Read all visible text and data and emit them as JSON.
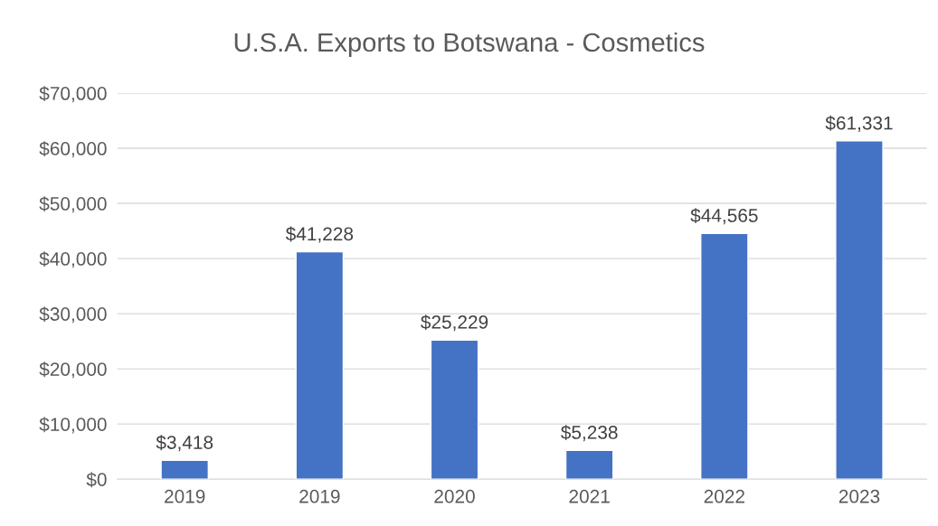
{
  "chart_data": {
    "type": "bar",
    "title": "U.S.A. Exports to Botswana - Cosmetics",
    "categories": [
      "2019",
      "2019",
      "2020",
      "2021",
      "2022",
      "2023"
    ],
    "values": [
      3418,
      41228,
      25229,
      5238,
      44565,
      61331
    ],
    "value_labels": [
      "$3,418",
      "$41,228",
      "$25,229",
      "$5,238",
      "$44,565",
      "$61,331"
    ],
    "color": "#4472c4",
    "ylim": [
      0,
      70000
    ],
    "yticks": [
      {
        "value": 0,
        "label": "$0"
      },
      {
        "value": 10000,
        "label": "$10,000"
      },
      {
        "value": 20000,
        "label": "$20,000"
      },
      {
        "value": 30000,
        "label": "$30,000"
      },
      {
        "value": 40000,
        "label": "$40,000"
      },
      {
        "value": 50000,
        "label": "$50,000"
      },
      {
        "value": 60000,
        "label": "$60,000"
      },
      {
        "value": 70000,
        "label": "$70,000"
      }
    ],
    "grid": "y",
    "legend": false
  }
}
